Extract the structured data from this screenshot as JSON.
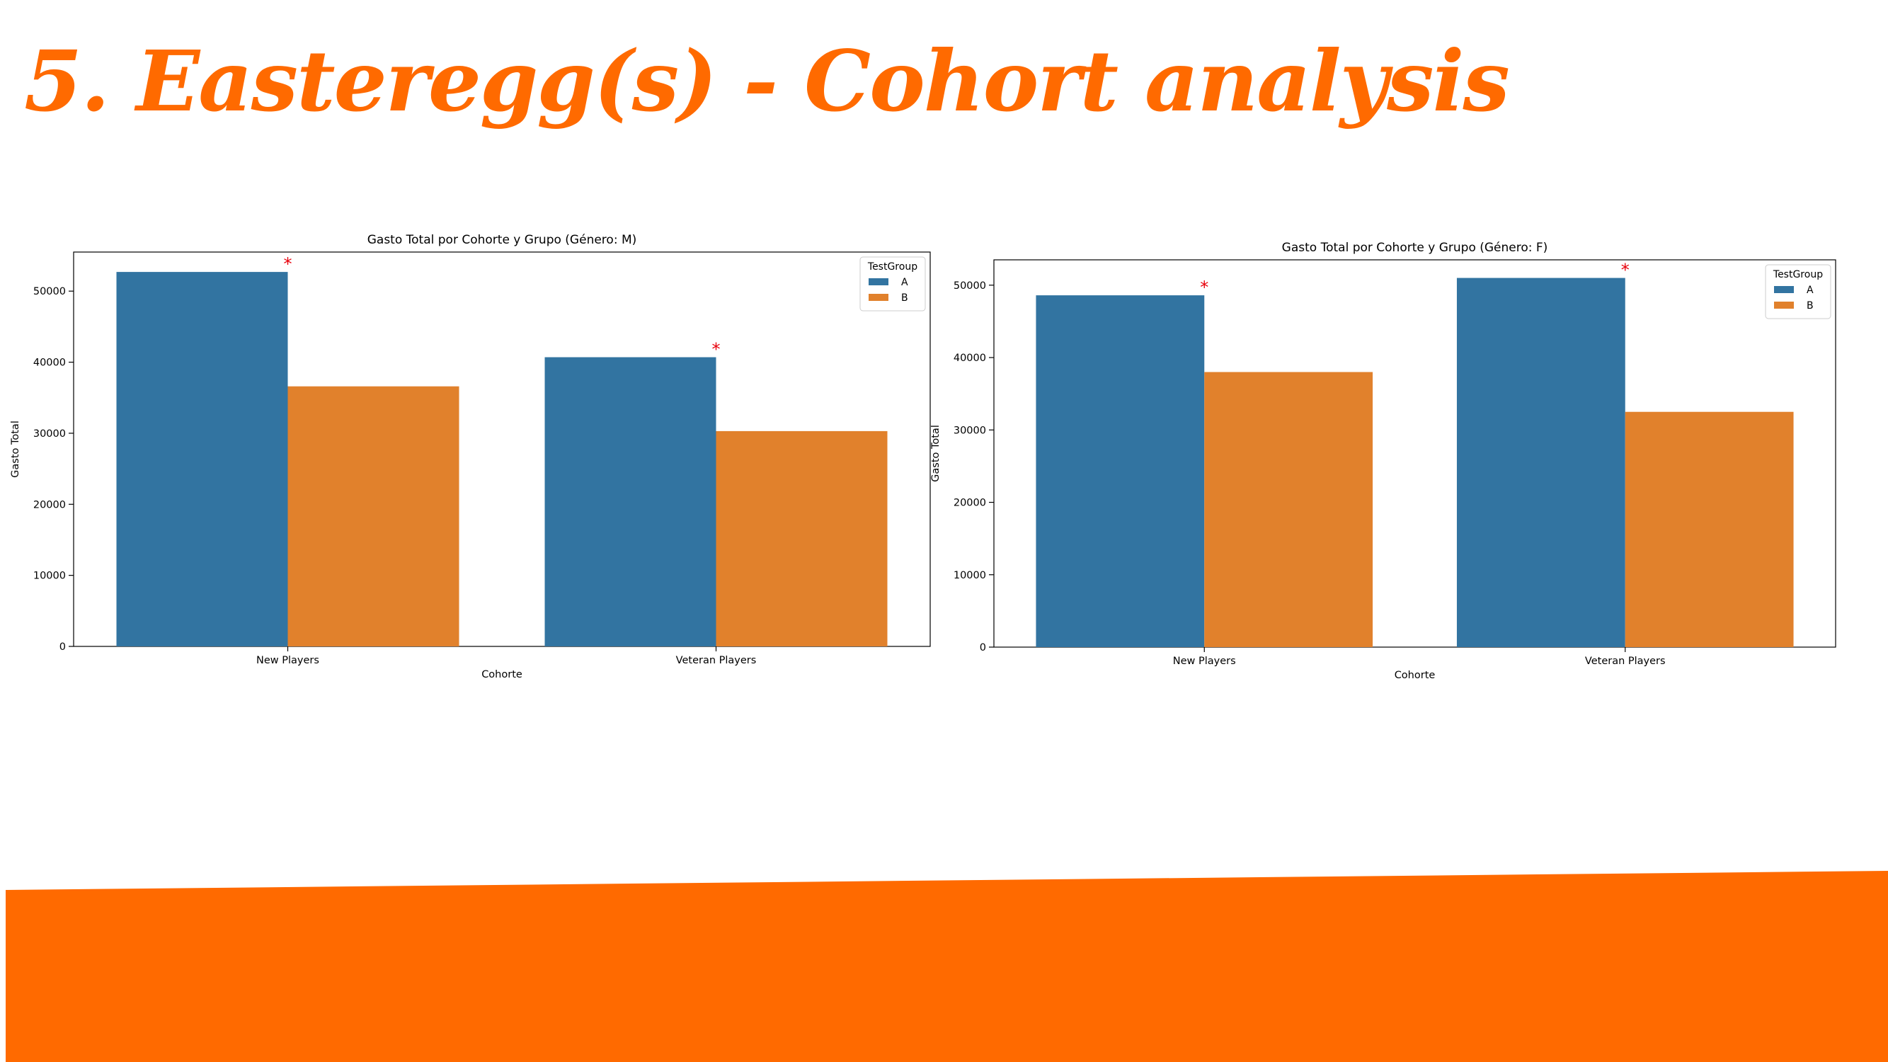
{
  "slide": {
    "title": "5. Easteregg(s) - Cohort analysis",
    "accent_color": "#ff6a00"
  },
  "chart_data": [
    {
      "type": "bar",
      "title": "Gasto Total por Cohorte y Grupo (Género: M)",
      "xlabel": "Cohorte",
      "ylabel": "Gasto Total",
      "categories": [
        "New Players",
        "Veteran Players"
      ],
      "series": [
        {
          "name": "A",
          "color": "#3274a1",
          "values": [
            52700,
            40700
          ]
        },
        {
          "name": "B",
          "color": "#e1812c",
          "values": [
            36600,
            30300
          ]
        }
      ],
      "significance_marker": {
        "text": "*",
        "color": "#e8000b",
        "series": "A"
      },
      "ylim": [
        0,
        55500
      ],
      "yticks": [
        0,
        10000,
        20000,
        30000,
        40000,
        50000
      ],
      "legend": {
        "title": "TestGroup",
        "position": "top-right"
      },
      "grid": false
    },
    {
      "type": "bar",
      "title": "Gasto Total por Cohorte y Grupo (Género: F)",
      "xlabel": "Cohorte",
      "ylabel": "Gasto Total",
      "categories": [
        "New Players",
        "Veteran Players"
      ],
      "series": [
        {
          "name": "A",
          "color": "#3274a1",
          "values": [
            48600,
            51000
          ]
        },
        {
          "name": "B",
          "color": "#e1812c",
          "values": [
            38000,
            32500
          ]
        }
      ],
      "significance_marker": {
        "text": "*",
        "color": "#e8000b",
        "series": "A"
      },
      "ylim": [
        0,
        53500
      ],
      "yticks": [
        0,
        10000,
        20000,
        30000,
        40000,
        50000
      ],
      "legend": {
        "title": "TestGroup",
        "position": "top-right"
      },
      "grid": false
    }
  ]
}
